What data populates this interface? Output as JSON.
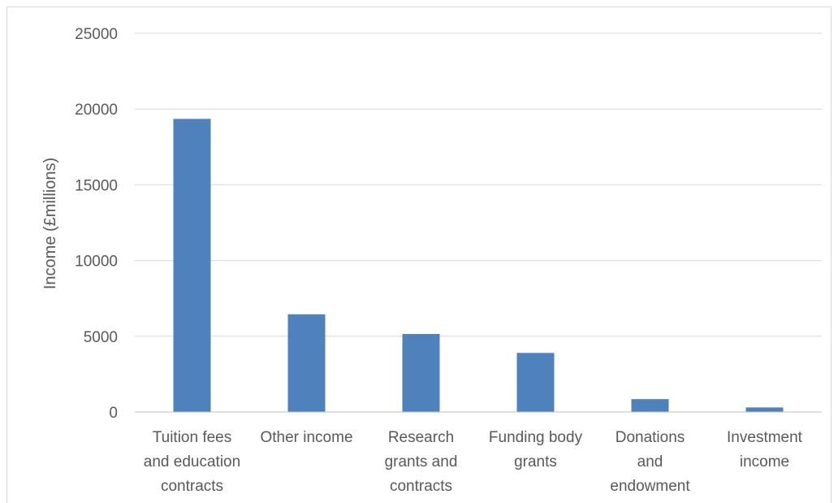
{
  "chart_data": {
    "type": "bar",
    "title": "",
    "xlabel": "",
    "ylabel": "Income (£millions)",
    "categories": [
      [
        "Tuition fees",
        "and education",
        "contracts"
      ],
      [
        "Other income"
      ],
      [
        "Research",
        "grants and",
        "contracts"
      ],
      [
        "Funding body",
        "grants"
      ],
      [
        "Donations",
        "and",
        "endowment"
      ],
      [
        "Investment",
        "income"
      ]
    ],
    "values": [
      19350,
      6450,
      5150,
      3900,
      850,
      300
    ],
    "ylim": [
      0,
      25000
    ],
    "yticks": [
      0,
      5000,
      10000,
      15000,
      20000,
      25000
    ],
    "grid": true,
    "bar_color": "#4F81BD",
    "grid_color": "#D9D9D9",
    "axis_color": "#BFBFBF",
    "text_color": "#595959"
  }
}
